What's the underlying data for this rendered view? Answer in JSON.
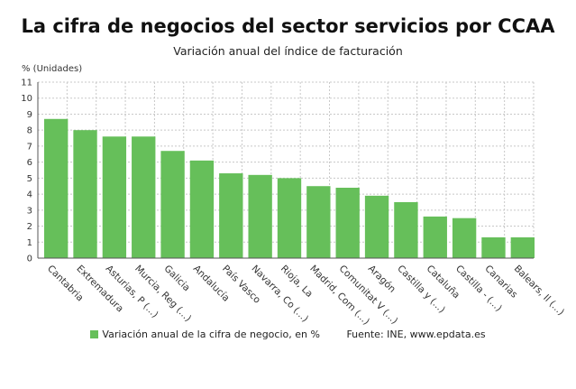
{
  "chart_data": {
    "type": "bar",
    "title": "La cifra de negocios del sector servicios por CCAA",
    "subtitle": "Variación anual del índice de facturación",
    "ylabel": "% (Unidades)",
    "xlabel": "",
    "ylim": [
      0,
      11
    ],
    "yticks": [
      0,
      1,
      2,
      3,
      4,
      5,
      6,
      7,
      8,
      9,
      10,
      11
    ],
    "grid": true,
    "legend_position": "bottom",
    "categories": [
      "Cantabria",
      "Extremadura",
      "Asturias, P (...)",
      "Murcia, Reg (...)",
      "Galicia",
      "Andalucía",
      "País Vasco",
      "Navarra, Co (...)",
      "Rioja, La",
      "Madrid, Com (...)",
      "Comunitat V (...)",
      "Aragón",
      "Castilla y (...)",
      "Cataluña",
      "Castilla - (...)",
      "Canarias",
      "Balears, Il (...)"
    ],
    "series": [
      {
        "name": "Variación anual de la cifra de negocio, en %",
        "color": "#66bf5a",
        "values": [
          8.7,
          8.0,
          7.6,
          7.6,
          6.7,
          6.1,
          5.3,
          5.2,
          5.0,
          4.5,
          4.4,
          3.9,
          3.5,
          2.6,
          2.5,
          1.3,
          1.3
        ]
      }
    ],
    "source": "Fuente: INE, www.epdata.es"
  }
}
